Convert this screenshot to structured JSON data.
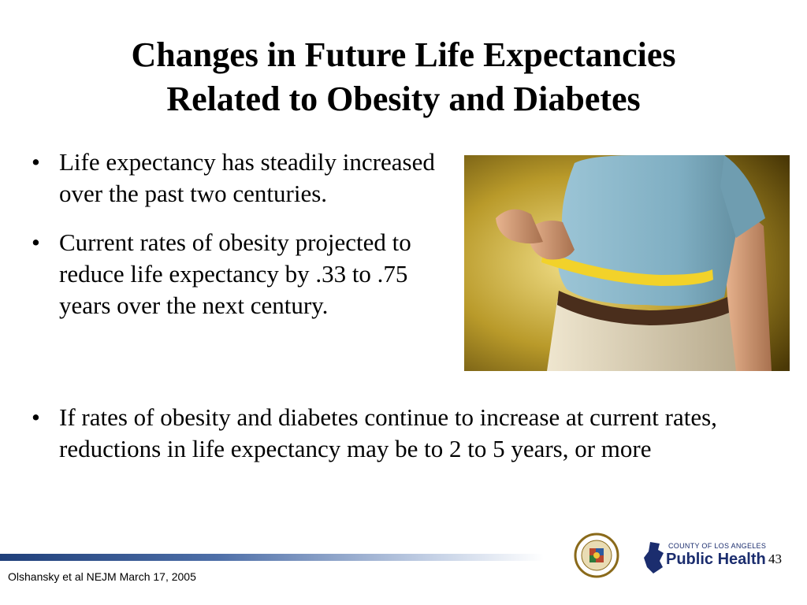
{
  "slide": {
    "title_line1": "Changes in Future Life Expectancies",
    "title_line2": "Related to Obesity and Diabetes",
    "bullets_top": [
      "Life expectancy has steadily increased over the past two centuries.",
      "Current rates of obesity projected to reduce life expectancy by .33 to .75 years over the next century."
    ],
    "bullets_bottom": [
      "If rates of obesity and diabetes continue to increase at current rates, reductions in life expectancy may be to 2 to 5 years, or more"
    ],
    "bullet_glyph": "•"
  },
  "footer": {
    "citation": "Olshansky et al   NEJM  March 17, 2005",
    "page_number": "43",
    "logo_top": "COUNTY OF LOS ANGELES",
    "logo_main": "Public Health"
  },
  "colors": {
    "footer_bar": "#1f3f7a",
    "logo_blue": "#1b2d6e"
  },
  "image": {
    "icon": "photo-man-measuring-waist"
  }
}
